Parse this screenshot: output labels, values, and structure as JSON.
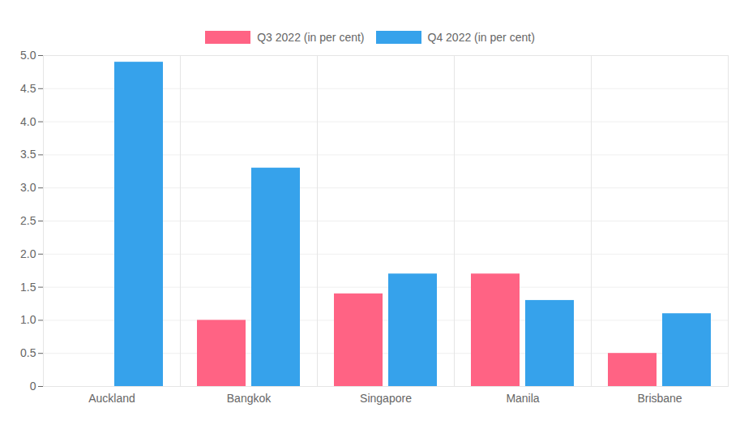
{
  "chart_data": {
    "type": "bar",
    "categories": [
      "Auckland",
      "Bangkok",
      "Singapore",
      "Manila",
      "Brisbane"
    ],
    "series": [
      {
        "name": "Q3 2022 (in per cent)",
        "color": "#ff6384",
        "values": [
          null,
          1.0,
          1.4,
          1.7,
          0.5
        ]
      },
      {
        "name": "Q4 2022 (in per cent)",
        "color": "#36a2eb",
        "values": [
          4.9,
          3.3,
          1.7,
          1.3,
          1.1
        ]
      }
    ],
    "ylim": [
      0,
      5
    ],
    "yticks": [
      0,
      0.5,
      {
        "value": 1,
        "label": "1.0"
      },
      1.5,
      {
        "value": 2,
        "label": "2.0"
      },
      2.5,
      {
        "value": 3,
        "label": "3.0"
      },
      3.5,
      {
        "value": 4,
        "label": "4.0"
      },
      4.5,
      {
        "value": 5,
        "label": "5.0"
      }
    ],
    "grid": true,
    "legend": "top"
  }
}
